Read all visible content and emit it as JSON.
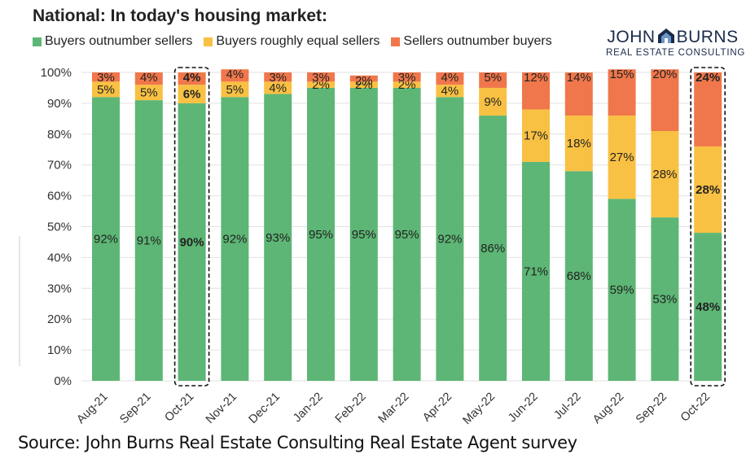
{
  "chart_data": {
    "type": "bar",
    "stacked": true,
    "title": "National: In today's housing market:",
    "categories": [
      "Aug-21",
      "Sep-21",
      "Oct-21",
      "Nov-21",
      "Dec-21",
      "Jan-22",
      "Feb-22",
      "Mar-22",
      "Apr-22",
      "May-22",
      "Jun-22",
      "Jul-22",
      "Aug-22",
      "Sep-22",
      "Oct-22"
    ],
    "series": [
      {
        "name": "Buyers outnumber sellers",
        "color": "#5db675",
        "values": [
          92,
          91,
          90,
          92,
          93,
          95,
          95,
          95,
          92,
          86,
          71,
          68,
          59,
          53,
          48
        ],
        "labels": [
          "92%",
          "91%",
          "90%",
          "92%",
          "93%",
          "95%",
          "95%",
          "95%",
          "92%",
          "86%",
          "71%",
          "68%",
          "59%",
          "53%",
          "48%"
        ]
      },
      {
        "name": "Buyers roughly equal sellers",
        "color": "#f8c143",
        "values": [
          5,
          5,
          6,
          5,
          4,
          2,
          2,
          2,
          4,
          9,
          17,
          18,
          27,
          28,
          28
        ],
        "labels": [
          "5%",
          "5%",
          "6%",
          "5%",
          "4%",
          "2%",
          "2%",
          "2%",
          "4%",
          "9%",
          "17%",
          "18%",
          "27%",
          "28%",
          "28%"
        ]
      },
      {
        "name": "Sellers outnumber buyers",
        "color": "#f0774b",
        "values": [
          3,
          4,
          4,
          4,
          3,
          3,
          2,
          3,
          4,
          5,
          12,
          14,
          15,
          20,
          24
        ],
        "labels": [
          "3%",
          "4%",
          "4%",
          "4%",
          "3%",
          "3%",
          "2%",
          "3%",
          "4%",
          "5%",
          "12%",
          "14%",
          "15%",
          "20%",
          "24%"
        ]
      }
    ],
    "highlighted": [
      "Oct-21",
      "Oct-22"
    ],
    "ylim": [
      0,
      100
    ],
    "yticks": [
      "0%",
      "10%",
      "20%",
      "30%",
      "40%",
      "50%",
      "60%",
      "70%",
      "80%",
      "90%",
      "100%"
    ],
    "xlabel": "",
    "ylabel": "",
    "legend": "top-left"
  },
  "logo": {
    "line1_left": "JOHN",
    "line1_right": "BURNS",
    "line2": "REAL ESTATE CONSULTING"
  },
  "source": "Source: John Burns Real Estate Consulting Real Estate Agent survey"
}
